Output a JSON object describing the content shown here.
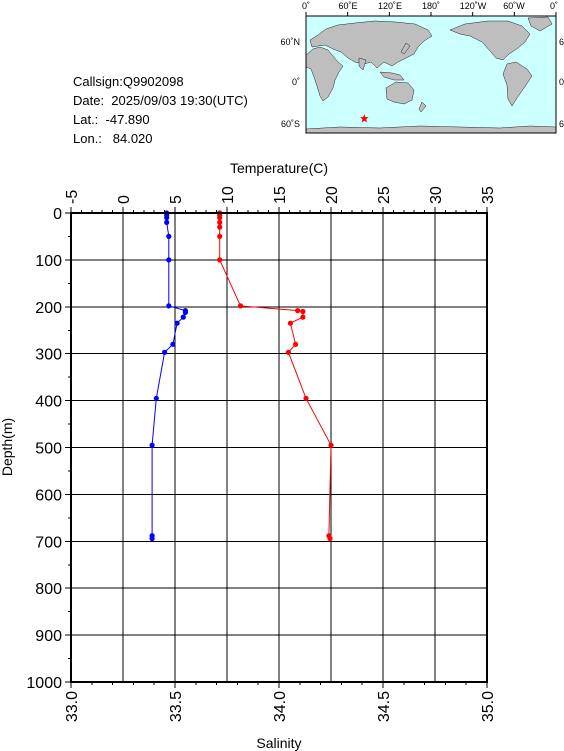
{
  "info": {
    "callsign": "Callsign:Q9902098",
    "date": "Date:  2025/09/03 19:30(UTC)",
    "lat": "Lat.:  -47.890",
    "lon": "Lon.:   84.020"
  },
  "map": {
    "lon_labels": [
      "0˚",
      "60˚E",
      "120˚E",
      "180˚",
      "120˚W",
      "60˚W",
      "0˚"
    ],
    "lat_labels": [
      "60˚N",
      "0˚",
      "60˚S"
    ],
    "colors": {
      "ocean": "#ccffff",
      "land": "#bebebe",
      "marker": "#ff0000"
    },
    "marker": {
      "lon": 84.02,
      "lat": -47.89,
      "symbol": "star"
    }
  },
  "chart_data": {
    "type": "line",
    "y_axis": {
      "label": "Depth(m)",
      "range": [
        0,
        1000
      ],
      "ticks": [
        0,
        100,
        200,
        300,
        400,
        500,
        600,
        700,
        800,
        900,
        1000
      ],
      "inverted": true
    },
    "top_axis": {
      "label": "Temperature(C)",
      "range": [
        -5,
        35
      ],
      "ticks": [
        -5,
        0,
        5,
        10,
        15,
        20,
        25,
        30,
        35
      ]
    },
    "bottom_axis": {
      "label": "Salinity",
      "range": [
        33.0,
        35.0
      ],
      "ticks": [
        "33.0",
        "33.5",
        "34.0",
        "34.5",
        "35.0"
      ]
    },
    "grid": true,
    "series": [
      {
        "variable": "temperature",
        "axis": "top",
        "color": "#ff0000",
        "points": [
          {
            "depth": 0,
            "value": 9.3
          },
          {
            "depth": 5,
            "value": 9.3
          },
          {
            "depth": 10,
            "value": 9.3
          },
          {
            "depth": 20,
            "value": 9.3
          },
          {
            "depth": 30,
            "value": 9.3
          },
          {
            "depth": 50,
            "value": 9.3
          },
          {
            "depth": 100,
            "value": 9.3
          },
          {
            "depth": 198,
            "value": 11.3
          },
          {
            "depth": 208,
            "value": 16.8
          },
          {
            "depth": 210,
            "value": 17.3
          },
          {
            "depth": 222,
            "value": 17.3
          },
          {
            "depth": 235,
            "value": 16.1
          },
          {
            "depth": 280,
            "value": 16.6
          },
          {
            "depth": 297,
            "value": 15.9
          },
          {
            "depth": 395,
            "value": 17.6
          },
          {
            "depth": 495,
            "value": 20.0
          },
          {
            "depth": 688,
            "value": 19.8
          },
          {
            "depth": 694,
            "value": 19.9
          }
        ]
      },
      {
        "variable": "salinity",
        "axis": "bottom",
        "color": "#0000ff",
        "points": [
          {
            "depth": 0,
            "value": 33.46
          },
          {
            "depth": 5,
            "value": 33.46
          },
          {
            "depth": 10,
            "value": 33.46
          },
          {
            "depth": 20,
            "value": 33.46
          },
          {
            "depth": 50,
            "value": 33.47
          },
          {
            "depth": 100,
            "value": 33.47
          },
          {
            "depth": 198,
            "value": 33.47
          },
          {
            "depth": 208,
            "value": 33.55
          },
          {
            "depth": 212,
            "value": 33.55
          },
          {
            "depth": 222,
            "value": 33.54
          },
          {
            "depth": 235,
            "value": 33.51
          },
          {
            "depth": 280,
            "value": 33.49
          },
          {
            "depth": 297,
            "value": 33.45
          },
          {
            "depth": 395,
            "value": 33.41
          },
          {
            "depth": 495,
            "value": 33.39
          },
          {
            "depth": 688,
            "value": 33.39
          },
          {
            "depth": 694,
            "value": 33.39
          }
        ]
      }
    ]
  }
}
